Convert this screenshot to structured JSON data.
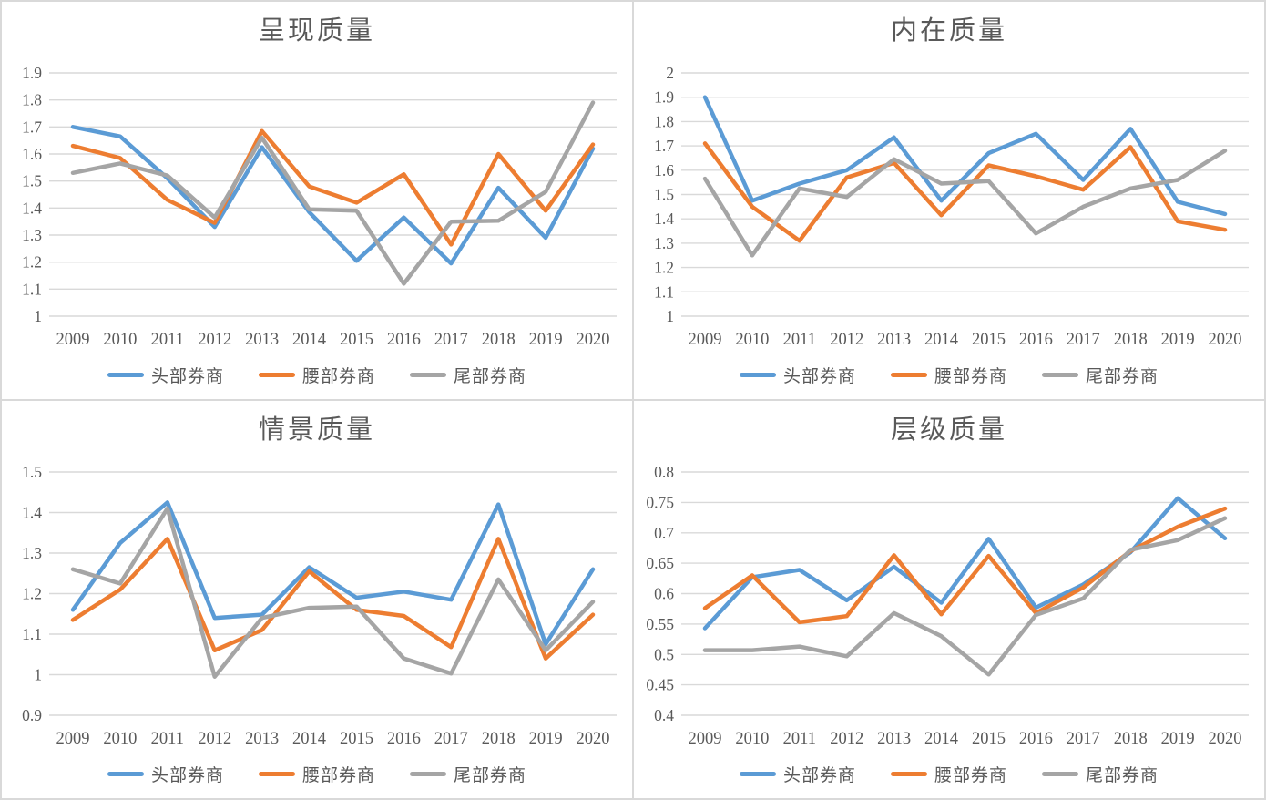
{
  "page": {
    "background": "#ffffff",
    "panel_border_color": "#d9d9d9"
  },
  "colors": {
    "series_blue": "#5B9BD5",
    "series_orange": "#ED7D31",
    "series_gray": "#A5A5A5",
    "text": "#595959",
    "gridline": "#D9D9D9"
  },
  "chart_data": [
    {
      "type": "line",
      "title": "呈现质量",
      "categories": [
        "2009",
        "2010",
        "2011",
        "2012",
        "2013",
        "2014",
        "2015",
        "2016",
        "2017",
        "2018",
        "2019",
        "2020"
      ],
      "series": [
        {
          "name": "头部券商",
          "color": "#5B9BD5",
          "values": [
            1.7,
            1.665,
            1.51,
            1.33,
            1.625,
            1.385,
            1.205,
            1.365,
            1.195,
            1.475,
            1.29,
            1.62
          ]
        },
        {
          "name": "腰部券商",
          "color": "#ED7D31",
          "values": [
            1.63,
            1.585,
            1.43,
            1.345,
            1.685,
            1.48,
            1.42,
            1.525,
            1.265,
            1.6,
            1.39,
            1.635
          ]
        },
        {
          "name": "尾部券商",
          "color": "#A5A5A5",
          "values": [
            1.53,
            1.565,
            1.52,
            1.365,
            1.66,
            1.395,
            1.39,
            1.12,
            1.35,
            1.353,
            1.46,
            1.79
          ]
        }
      ],
      "ylim": [
        1,
        1.9
      ],
      "ytick_step": 0.1,
      "yticks": [
        "1",
        "1.1",
        "1.2",
        "1.3",
        "1.4",
        "1.5",
        "1.6",
        "1.7",
        "1.8",
        "1.9"
      ],
      "grid": true,
      "legend_position": "bottom"
    },
    {
      "type": "line",
      "title": "内在质量",
      "categories": [
        "2009",
        "2010",
        "2011",
        "2012",
        "2013",
        "2014",
        "2015",
        "2016",
        "2017",
        "2018",
        "2019",
        "2020"
      ],
      "series": [
        {
          "name": "头部券商",
          "color": "#5B9BD5",
          "values": [
            1.9,
            1.475,
            1.545,
            1.6,
            1.735,
            1.475,
            1.67,
            1.75,
            1.56,
            1.77,
            1.47,
            1.42
          ]
        },
        {
          "name": "腰部券商",
          "color": "#ED7D31",
          "values": [
            1.71,
            1.45,
            1.31,
            1.57,
            1.63,
            1.415,
            1.62,
            1.575,
            1.52,
            1.695,
            1.39,
            1.355
          ]
        },
        {
          "name": "尾部券商",
          "color": "#A5A5A5",
          "values": [
            1.565,
            1.25,
            1.525,
            1.49,
            1.645,
            1.545,
            1.555,
            1.34,
            1.45,
            1.525,
            1.56,
            1.68
          ]
        }
      ],
      "ylim": [
        1,
        2
      ],
      "ytick_step": 0.1,
      "yticks": [
        "1",
        "1.1",
        "1.2",
        "1.3",
        "1.4",
        "1.5",
        "1.6",
        "1.7",
        "1.8",
        "1.9",
        "2"
      ],
      "grid": true,
      "legend_position": "bottom"
    },
    {
      "type": "line",
      "title": "情景质量",
      "categories": [
        "2009",
        "2010",
        "2011",
        "2012",
        "2013",
        "2014",
        "2015",
        "2016",
        "2017",
        "2018",
        "2019",
        "2020"
      ],
      "series": [
        {
          "name": "头部券商",
          "color": "#5B9BD5",
          "values": [
            1.16,
            1.325,
            1.425,
            1.14,
            1.148,
            1.265,
            1.19,
            1.205,
            1.185,
            1.42,
            1.075,
            1.26
          ]
        },
        {
          "name": "腰部券商",
          "color": "#ED7D31",
          "values": [
            1.135,
            1.21,
            1.335,
            1.06,
            1.11,
            1.255,
            1.16,
            1.145,
            1.068,
            1.335,
            1.04,
            1.148
          ]
        },
        {
          "name": "尾部券商",
          "color": "#A5A5A5",
          "values": [
            1.26,
            1.225,
            1.41,
            0.995,
            1.14,
            1.165,
            1.168,
            1.04,
            1.003,
            1.235,
            1.06,
            1.18
          ]
        }
      ],
      "ylim": [
        0.9,
        1.5
      ],
      "ytick_step": 0.1,
      "yticks": [
        "0.9",
        "1",
        "1.1",
        "1.2",
        "1.3",
        "1.4",
        "1.5"
      ],
      "grid": true,
      "legend_position": "bottom"
    },
    {
      "type": "line",
      "title": "层级质量",
      "categories": [
        "2009",
        "2010",
        "2011",
        "2012",
        "2013",
        "2014",
        "2015",
        "2016",
        "2017",
        "2018",
        "2019",
        "2020"
      ],
      "series": [
        {
          "name": "头部券商",
          "color": "#5B9BD5",
          "values": [
            0.543,
            0.627,
            0.639,
            0.589,
            0.644,
            0.585,
            0.69,
            0.577,
            0.615,
            0.668,
            0.757,
            0.691
          ]
        },
        {
          "name": "腰部券商",
          "color": "#ED7D31",
          "values": [
            0.576,
            0.63,
            0.553,
            0.563,
            0.663,
            0.566,
            0.662,
            0.568,
            0.61,
            0.67,
            0.71,
            0.74
          ]
        },
        {
          "name": "尾部券商",
          "color": "#A5A5A5",
          "values": [
            0.507,
            0.507,
            0.513,
            0.497,
            0.568,
            0.53,
            0.467,
            0.565,
            0.592,
            0.672,
            0.688,
            0.724
          ]
        }
      ],
      "ylim": [
        0.4,
        0.8
      ],
      "ytick_step": 0.05,
      "yticks": [
        "0.4",
        "0.45",
        "0.5",
        "0.55",
        "0.6",
        "0.65",
        "0.7",
        "0.75",
        "0.8"
      ],
      "grid": true,
      "legend_position": "bottom"
    }
  ]
}
